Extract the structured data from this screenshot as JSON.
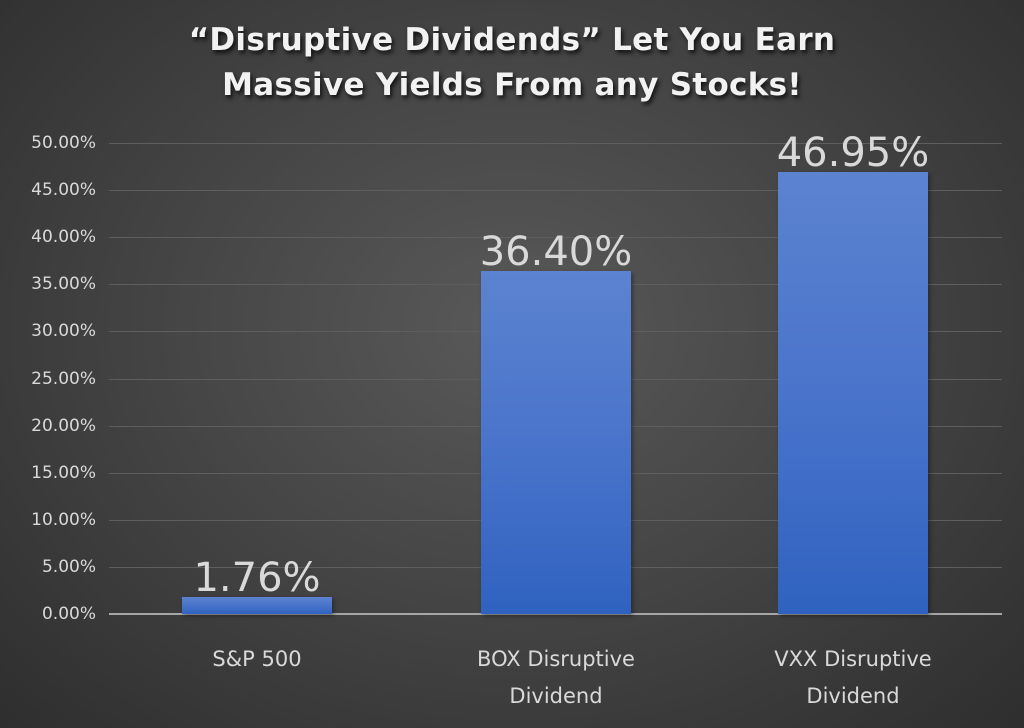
{
  "chart_data": {
    "type": "bar",
    "title": "“Disruptive Dividends” Let You Earn Massive Yields From any Stocks!",
    "title_lines": [
      "“Disruptive Dividends” Let You Earn",
      "Massive Yields From any Stocks!"
    ],
    "categories": [
      "S&P 500",
      "BOX Disruptive Dividend",
      "VXX Disruptive Dividend"
    ],
    "category_lines": [
      [
        "S&P 500"
      ],
      [
        "BOX Disruptive",
        "Dividend"
      ],
      [
        "VXX Disruptive",
        "Dividend"
      ]
    ],
    "values": [
      1.76,
      36.4,
      46.95
    ],
    "data_labels": [
      "1.76%",
      "36.40%",
      "46.95%"
    ],
    "xlabel": "",
    "ylabel": "",
    "ylim": [
      0,
      50
    ],
    "y_ticks": [
      "0.00%",
      "5.00%",
      "10.00%",
      "15.00%",
      "20.00%",
      "25.00%",
      "30.00%",
      "35.00%",
      "40.00%",
      "45.00%",
      "50.00%"
    ],
    "grid": true,
    "legend": null,
    "bar_color": "#4a74cb",
    "background": "#464646"
  }
}
